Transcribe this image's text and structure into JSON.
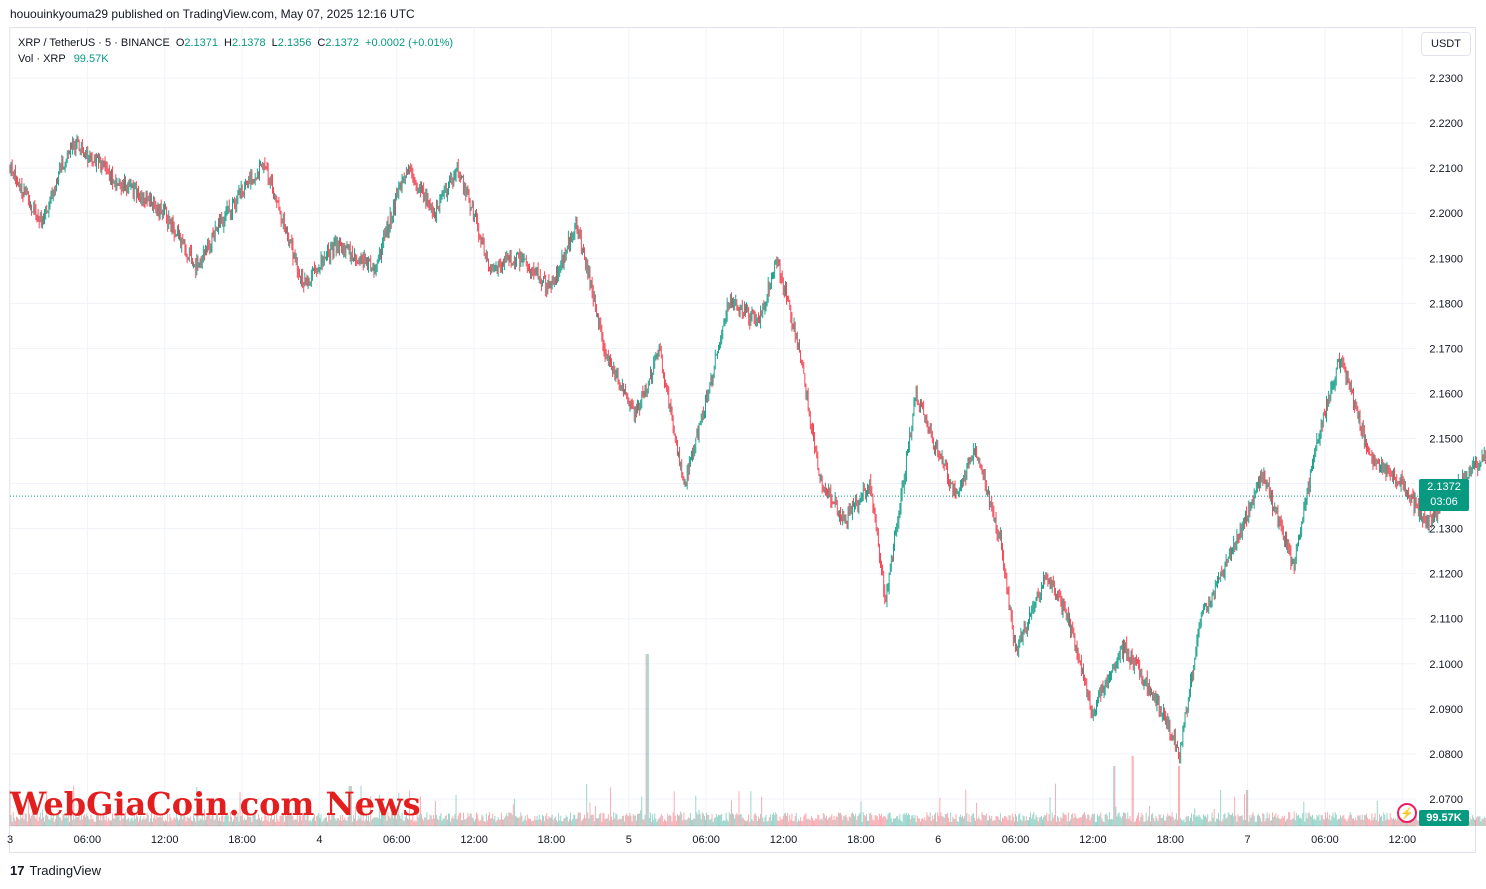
{
  "header": {
    "published": "hououinkyouma29 published on TradingView.com, May 07, 2025 12:16 UTC"
  },
  "legend": {
    "symbol": "XRP / TetherUS · 5 · BINANCE",
    "open_key": "O",
    "open": "2.1371",
    "high_key": "H",
    "high": "2.1378",
    "low_key": "L",
    "low": "2.1356",
    "close_key": "C",
    "close": "2.1372",
    "change": "+0.0002 (+0.01%)",
    "vol_label": "Vol · XRP",
    "vol_value": "99.57K"
  },
  "unit_button": "USDT",
  "price_badge": {
    "price": "2.1372",
    "countdown": "03:06"
  },
  "vol_badge": "99.57K",
  "watermark": "WebGiaCoin.com News",
  "footer": {
    "logo_mark": "17",
    "logo_text": "TradingView"
  },
  "colors": {
    "up": "#089981",
    "down": "#f23645",
    "grid": "#f0f3fa",
    "axis_text": "#131722"
  },
  "chart_data": {
    "type": "candlestick",
    "symbol": "XRP / TetherUS",
    "interval": "5",
    "exchange": "BINANCE",
    "yaxis": {
      "ticks": [
        "2.0700",
        "2.0800",
        "2.0900",
        "2.1000",
        "2.1100",
        "2.1200",
        "2.1300",
        "2.1400",
        "2.1500",
        "2.1600",
        "2.1700",
        "2.1800",
        "2.1900",
        "2.2000",
        "2.2100",
        "2.2200",
        "2.2300"
      ],
      "range": [
        2.064,
        2.234
      ]
    },
    "xaxis": {
      "ticks": [
        "3",
        "06:00",
        "12:00",
        "18:00",
        "4",
        "06:00",
        "12:00",
        "18:00",
        "5",
        "06:00",
        "12:00",
        "18:00",
        "6",
        "06:00",
        "12:00",
        "18:00",
        "7",
        "06:00",
        "12:00"
      ]
    },
    "grid": true,
    "last_price": 2.1372,
    "price_anchors": [
      [
        3.0,
        2.21
      ],
      [
        3.1,
        2.198
      ],
      [
        3.2,
        2.216
      ],
      [
        3.35,
        2.207
      ],
      [
        3.5,
        2.2
      ],
      [
        3.6,
        2.188
      ],
      [
        3.7,
        2.2
      ],
      [
        3.82,
        2.211
      ],
      [
        3.95,
        2.184
      ],
      [
        4.05,
        2.193
      ],
      [
        4.18,
        2.188
      ],
      [
        4.28,
        2.21
      ],
      [
        4.37,
        2.2
      ],
      [
        4.45,
        2.21
      ],
      [
        4.55,
        2.188
      ],
      [
        4.65,
        2.19
      ],
      [
        4.75,
        2.183
      ],
      [
        4.83,
        2.198
      ],
      [
        4.93,
        2.168
      ],
      [
        5.02,
        2.155
      ],
      [
        5.1,
        2.169
      ],
      [
        5.18,
        2.14
      ],
      [
        5.25,
        2.158
      ],
      [
        5.32,
        2.18
      ],
      [
        5.42,
        2.176
      ],
      [
        5.48,
        2.19
      ],
      [
        5.55,
        2.17
      ],
      [
        5.62,
        2.14
      ],
      [
        5.7,
        2.132
      ],
      [
        5.78,
        2.14
      ],
      [
        5.83,
        2.114
      ],
      [
        5.93,
        2.16
      ],
      [
        5.98,
        2.15
      ],
      [
        6.06,
        2.137
      ],
      [
        6.12,
        2.148
      ],
      [
        6.2,
        2.128
      ],
      [
        6.25,
        2.102
      ],
      [
        6.35,
        2.12
      ],
      [
        6.42,
        2.11
      ],
      [
        6.5,
        2.089
      ],
      [
        6.6,
        2.104
      ],
      [
        6.72,
        2.09
      ],
      [
        6.78,
        2.08
      ],
      [
        6.85,
        2.11
      ],
      [
        6.95,
        2.125
      ],
      [
        7.05,
        2.142
      ],
      [
        7.15,
        2.121
      ],
      [
        7.22,
        2.148
      ],
      [
        7.3,
        2.168
      ],
      [
        7.4,
        2.145
      ],
      [
        7.5,
        2.14
      ],
      [
        7.58,
        2.131
      ],
      [
        7.7,
        2.141
      ],
      [
        7.8,
        2.149
      ],
      [
        7.9,
        2.1372
      ]
    ],
    "volume": {
      "last": "99.57K",
      "spikes": [
        [
          5.06,
          0.86
        ],
        [
          6.63,
          0.35
        ],
        [
          6.78,
          0.3
        ],
        [
          6.57,
          0.3
        ],
        [
          4.1,
          0.2
        ],
        [
          7.0,
          0.18
        ]
      ]
    }
  }
}
